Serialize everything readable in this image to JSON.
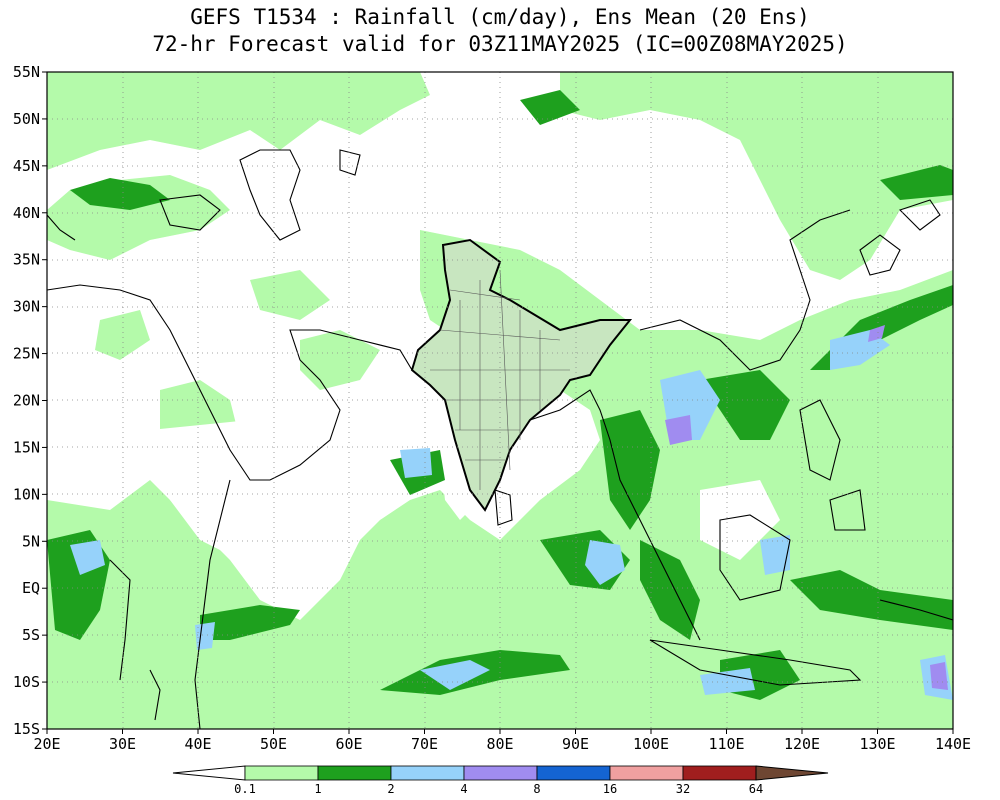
{
  "title": {
    "line1": "GEFS T1534 : Rainfall (cm/day), Ens Mean (20 Ens)",
    "line2": "72-hr Forecast valid for 03Z11MAY2025 (IC=00Z08MAY2025)"
  },
  "axes": {
    "lat_labels": [
      "55N",
      "50N",
      "45N",
      "40N",
      "35N",
      "30N",
      "25N",
      "20N",
      "15N",
      "10N",
      "5N",
      "EQ",
      "5S",
      "10S",
      "15S"
    ],
    "lon_labels": [
      "20E",
      "30E",
      "40E",
      "50E",
      "60E",
      "70E",
      "80E",
      "90E",
      "100E",
      "110E",
      "120E",
      "130E",
      "140E"
    ],
    "lat_range": [
      -15,
      55
    ],
    "lon_range": [
      20,
      140
    ],
    "gridlines": "dotted"
  },
  "colorbar": {
    "levels": [
      "0.1",
      "1",
      "2",
      "4",
      "8",
      "16",
      "32",
      "64"
    ],
    "colors": [
      "#ffffff",
      "#b4faaa",
      "#1ea01e",
      "#96d2fa",
      "#a08cf0",
      "#1464d2",
      "#f0a0a0",
      "#a01e1e",
      "#6e4632"
    ]
  },
  "colors": {
    "light_green": "#b4faaa",
    "dark_green": "#1ea01e",
    "light_blue": "#96d2fa",
    "lavender": "#a08cf0",
    "coast": "#000000"
  }
}
